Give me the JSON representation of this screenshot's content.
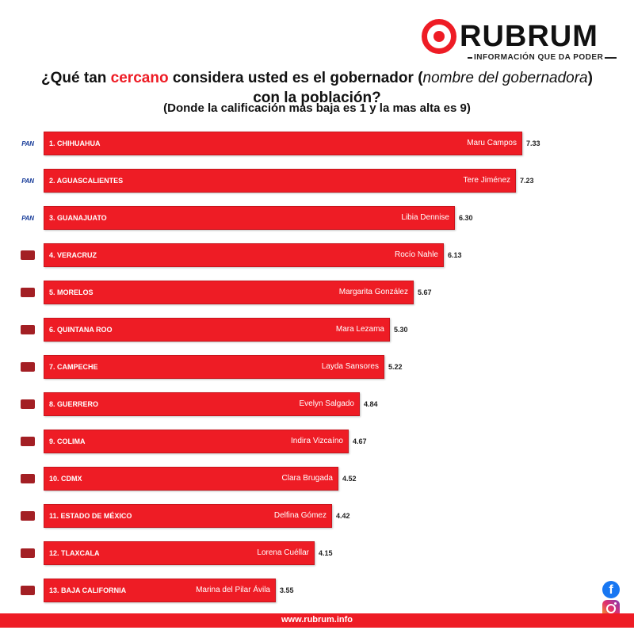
{
  "brand": {
    "name": "RUBRUM",
    "tagline": "INFORMACIÓN QUE DA PODER",
    "url": "www.rubrum.info",
    "accent": "#ee1c25"
  },
  "title": {
    "part1": "¿Qué tan ",
    "highlight": "cercano",
    "part2": " considera usted es el gobernador (",
    "italic": "nombre del gobernadora",
    "part3": ") con la población?",
    "subtitle": "(Donde la calificación mas baja es 1 y la mas alta es 9)"
  },
  "social": {
    "facebook": "facebook-icon",
    "instagram": "instagram-icon"
  },
  "chart_data": {
    "type": "bar",
    "orientation": "horizontal",
    "xlim": [
      0,
      9
    ],
    "grid": false,
    "legend": "none",
    "bar_color": "#ee1c25",
    "party_colors": {
      "PAN": "#1a3e9a",
      "MORENA": "#a31f24"
    },
    "categories": [
      "1. CHIHUAHUA",
      "2. AGUASCALIENTES",
      "3. GUANAJUATO",
      "4. VERACRUZ",
      "5. MORELOS",
      "6. QUINTANA ROO",
      "7. CAMPECHE",
      "8. GUERRERO",
      "9. COLIMA",
      "10. CDMX",
      "11. ESTADO DE MÉXICO",
      "12. TLAXCALA",
      "13. BAJA CALIFORNIA"
    ],
    "names": [
      "Maru Campos",
      "Tere Jiménez",
      "Libia Dennise",
      "Rocío Nahle",
      "Margarita González",
      "Mara Lezama",
      "Layda Sansores",
      "Evelyn Salgado",
      "Indira Vizcaíno",
      "Clara Brugada",
      "Delfina Gómez",
      "Lorena Cuéllar",
      "Marina del Pilar Ávila"
    ],
    "parties": [
      "PAN",
      "PAN",
      "PAN",
      "MORENA",
      "MORENA",
      "MORENA",
      "MORENA",
      "MORENA",
      "MORENA",
      "MORENA",
      "MORENA",
      "MORENA",
      "MORENA"
    ],
    "values": [
      7.33,
      7.23,
      6.3,
      6.13,
      5.67,
      5.3,
      5.22,
      4.84,
      4.67,
      4.52,
      4.42,
      4.15,
      3.55
    ],
    "value_labels": [
      "7.33",
      "7.23",
      "6.30",
      "6.13",
      "5.67",
      "5.30",
      "5.22",
      "4.84",
      "4.67",
      "4.52",
      "4.42",
      "4.15",
      "3.55"
    ]
  }
}
